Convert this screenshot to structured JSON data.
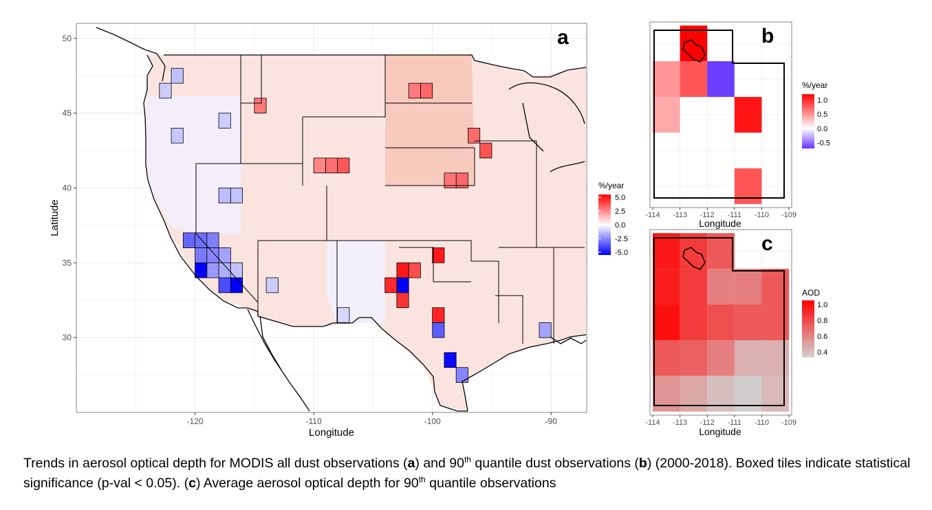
{
  "panel_a": {
    "letter": "a",
    "xlabel": "Longitude",
    "ylabel": "Latitude",
    "x_ticks": [
      "-120",
      "-110",
      "-100",
      "-90"
    ],
    "y_ticks": [
      "30",
      "35",
      "40",
      "45",
      "50"
    ],
    "legend_title": "%/year",
    "legend_labels": [
      "5.0",
      "2.5",
      "0.0",
      "-2.5",
      "-5.0"
    ]
  },
  "panel_b": {
    "letter": "b",
    "xlabel": "Longitude",
    "x_ticks": [
      "-114",
      "-113",
      "-112",
      "-111",
      "-110",
      "-109"
    ],
    "legend_title": "%/year",
    "legend_labels": [
      "1.0",
      "0.5",
      "0.0",
      "-0.5"
    ]
  },
  "panel_c": {
    "letter": "c",
    "xlabel": "Longitude",
    "x_ticks": [
      "-114",
      "-113",
      "-112",
      "-111",
      "-110",
      "-109"
    ],
    "legend_title": "AOD",
    "legend_labels": [
      "1.0",
      "0.8",
      "0.6",
      "0.4"
    ]
  },
  "caption": {
    "p1": "Trends in aerosol optical depth for MODIS all dust observations (",
    "b1": "a",
    "p2": ") and 90",
    "sup1": "th",
    "p3": " quantile dust observations (",
    "b2": "b",
    "p4": ") (2000-2018). Boxed tiles indicate statistical significance (p-val < 0.05). (",
    "b3": "c",
    "p5": ") Average aerosol optical depth for 90",
    "sup2": "th",
    "p6": " quantile observations"
  },
  "colors": {
    "increase": "#ff0000",
    "decrease": "#0000ff",
    "neutral": "#ffffff",
    "aod_high": "#ff0000",
    "aod_low": "#d3d3d3",
    "grid": "#ebebeb"
  },
  "chart_data": [
    {
      "type": "heatmap",
      "panel": "a",
      "xlabel": "Longitude",
      "ylabel": "Latitude",
      "xlim": [
        -130,
        -87
      ],
      "ylim": [
        25,
        51
      ],
      "x_ticks": [
        -120,
        -110,
        -100,
        -90
      ],
      "y_ticks": [
        30,
        35,
        40,
        45,
        50
      ],
      "legend": {
        "title": "%/year",
        "range": [
          -5.0,
          5.0
        ],
        "ticks": [
          5.0,
          2.5,
          0.0,
          -2.5,
          -5.0
        ],
        "placement": "right"
      },
      "cell_size_deg": 1,
      "tiles": [
        {
          "lon": -119.5,
          "lat": 34.5,
          "value": -5.0,
          "significant": true
        },
        {
          "lon": -116.5,
          "lat": 33.5,
          "value": -5.0,
          "significant": true
        },
        {
          "lon": -117.5,
          "lat": 33.5,
          "value": -3.5,
          "significant": true
        },
        {
          "lon": -120.5,
          "lat": 36.5,
          "value": -3.0,
          "significant": true
        },
        {
          "lon": -119.5,
          "lat": 36.5,
          "value": -2.8,
          "significant": true
        },
        {
          "lon": -118.5,
          "lat": 36.5,
          "value": -2.5,
          "significant": true
        },
        {
          "lon": -119.5,
          "lat": 35.5,
          "value": -2.6,
          "significant": true
        },
        {
          "lon": -118.5,
          "lat": 35.5,
          "value": -2.4,
          "significant": true
        },
        {
          "lon": -117.5,
          "lat": 35.5,
          "value": -1.8,
          "significant": true
        },
        {
          "lon": -118.5,
          "lat": 34.5,
          "value": -2.0,
          "significant": true
        },
        {
          "lon": -117.5,
          "lat": 34.5,
          "value": -1.6,
          "significant": true
        },
        {
          "lon": -116.5,
          "lat": 34.5,
          "value": -1.2,
          "significant": true
        },
        {
          "lon": -121.5,
          "lat": 47.5,
          "value": -1.2,
          "significant": true
        },
        {
          "lon": -122.5,
          "lat": 46.5,
          "value": -1.0,
          "significant": true
        },
        {
          "lon": -121.5,
          "lat": 43.5,
          "value": -1.1,
          "significant": true
        },
        {
          "lon": -117.5,
          "lat": 44.5,
          "value": -1.0,
          "significant": true
        },
        {
          "lon": -117.5,
          "lat": 39.5,
          "value": -1.3,
          "significant": true
        },
        {
          "lon": -116.5,
          "lat": 39.5,
          "value": -1.2,
          "significant": true
        },
        {
          "lon": -113.5,
          "lat": 33.5,
          "value": -1.0,
          "significant": true
        },
        {
          "lon": -107.5,
          "lat": 31.5,
          "value": -0.8,
          "significant": true
        },
        {
          "lon": -98.5,
          "lat": 28.5,
          "value": -4.8,
          "significant": true
        },
        {
          "lon": -99.5,
          "lat": 30.5,
          "value": -3.2,
          "significant": true
        },
        {
          "lon": -97.5,
          "lat": 27.5,
          "value": -2.4,
          "significant": true
        },
        {
          "lon": -90.5,
          "lat": 30.5,
          "value": -1.8,
          "significant": true
        },
        {
          "lon": -102.5,
          "lat": 33.5,
          "value": -5.0,
          "significant": true
        },
        {
          "lon": -103.5,
          "lat": 33.5,
          "value": 4.2,
          "significant": true
        },
        {
          "lon": -102.5,
          "lat": 34.5,
          "value": 4.5,
          "significant": true
        },
        {
          "lon": -101.5,
          "lat": 34.5,
          "value": 3.5,
          "significant": true
        },
        {
          "lon": -102.5,
          "lat": 32.5,
          "value": 4.0,
          "significant": true
        },
        {
          "lon": -99.5,
          "lat": 35.5,
          "value": 4.5,
          "significant": true
        },
        {
          "lon": -99.5,
          "lat": 31.5,
          "value": 4.3,
          "significant": true
        },
        {
          "lon": -107.5,
          "lat": 41.5,
          "value": 3.3,
          "significant": true
        },
        {
          "lon": -108.5,
          "lat": 41.5,
          "value": 2.8,
          "significant": true
        },
        {
          "lon": -109.5,
          "lat": 41.5,
          "value": 2.4,
          "significant": true
        },
        {
          "lon": -114.5,
          "lat": 45.5,
          "value": 2.6,
          "significant": true
        },
        {
          "lon": -95.5,
          "lat": 42.5,
          "value": 3.4,
          "significant": true
        },
        {
          "lon": -96.5,
          "lat": 43.5,
          "value": 2.9,
          "significant": true
        },
        {
          "lon": -97.5,
          "lat": 40.5,
          "value": 3.0,
          "significant": true
        },
        {
          "lon": -98.5,
          "lat": 40.5,
          "value": 2.7,
          "significant": true
        },
        {
          "lon": -100.5,
          "lat": 46.5,
          "value": 3.0,
          "significant": true
        },
        {
          "lon": -101.5,
          "lat": 46.5,
          "value": 2.6,
          "significant": true
        }
      ]
    },
    {
      "type": "heatmap",
      "panel": "b",
      "xlabel": "Longitude",
      "xlim": [
        -114.1,
        -108.9
      ],
      "ylim": [
        36.9,
        42.1
      ],
      "x_ticks": [
        -114,
        -113,
        -112,
        -111,
        -110,
        -109
      ],
      "legend": {
        "title": "%/year",
        "range": [
          -0.7,
          1.2
        ],
        "ticks": [
          1.0,
          0.5,
          0.0,
          -0.5
        ],
        "placement": "right"
      },
      "cell_size_deg": 1,
      "tiles": [
        {
          "lon": -112.5,
          "lat": 41.5,
          "value": 1.2,
          "significant": true
        },
        {
          "lon": -113.5,
          "lat": 40.5,
          "value": 0.5,
          "significant": true
        },
        {
          "lon": -112.5,
          "lat": 40.5,
          "value": 0.8,
          "significant": true
        },
        {
          "lon": -111.5,
          "lat": 40.5,
          "value": -0.7,
          "significant": true
        },
        {
          "lon": -113.5,
          "lat": 39.5,
          "value": 0.4,
          "significant": true
        },
        {
          "lon": -110.5,
          "lat": 39.5,
          "value": 1.1,
          "significant": true
        },
        {
          "lon": -110.5,
          "lat": 37.5,
          "value": 0.8,
          "significant": true
        }
      ]
    },
    {
      "type": "heatmap",
      "panel": "c",
      "xlabel": "Longitude",
      "xlim": [
        -114.1,
        -108.9
      ],
      "ylim": [
        36.9,
        42.1
      ],
      "x_ticks": [
        -114,
        -113,
        -112,
        -111,
        -110,
        -109
      ],
      "legend": {
        "title": "AOD",
        "range": [
          0.33,
          1.05
        ],
        "ticks": [
          1.0,
          0.8,
          0.6,
          0.4
        ],
        "placement": "right"
      },
      "cell_size_deg": 1,
      "tiles": [
        {
          "lon": -113.5,
          "lat": 41.5,
          "value": 0.97
        },
        {
          "lon": -112.5,
          "lat": 41.5,
          "value": 0.85
        },
        {
          "lon": -111.5,
          "lat": 41.5,
          "value": 0.75
        },
        {
          "lon": -113.5,
          "lat": 40.5,
          "value": 0.95
        },
        {
          "lon": -112.5,
          "lat": 40.5,
          "value": 0.85
        },
        {
          "lon": -111.5,
          "lat": 40.5,
          "value": 0.62
        },
        {
          "lon": -110.5,
          "lat": 40.5,
          "value": 0.62
        },
        {
          "lon": -109.5,
          "lat": 40.5,
          "value": 0.75
        },
        {
          "lon": -113.5,
          "lat": 39.5,
          "value": 1.0
        },
        {
          "lon": -112.5,
          "lat": 39.5,
          "value": 0.85
        },
        {
          "lon": -111.5,
          "lat": 39.5,
          "value": 0.78
        },
        {
          "lon": -110.5,
          "lat": 39.5,
          "value": 0.75
        },
        {
          "lon": -109.5,
          "lat": 39.5,
          "value": 0.75
        },
        {
          "lon": -113.5,
          "lat": 38.5,
          "value": 0.75
        },
        {
          "lon": -112.5,
          "lat": 38.5,
          "value": 0.72
        },
        {
          "lon": -111.5,
          "lat": 38.5,
          "value": 0.62
        },
        {
          "lon": -110.5,
          "lat": 38.5,
          "value": 0.45
        },
        {
          "lon": -109.5,
          "lat": 38.5,
          "value": 0.45
        },
        {
          "lon": -113.5,
          "lat": 37.5,
          "value": 0.55
        },
        {
          "lon": -112.5,
          "lat": 37.5,
          "value": 0.48
        },
        {
          "lon": -111.5,
          "lat": 37.5,
          "value": 0.4
        },
        {
          "lon": -110.5,
          "lat": 37.5,
          "value": 0.35
        },
        {
          "lon": -109.5,
          "lat": 37.5,
          "value": 0.42
        }
      ]
    }
  ]
}
